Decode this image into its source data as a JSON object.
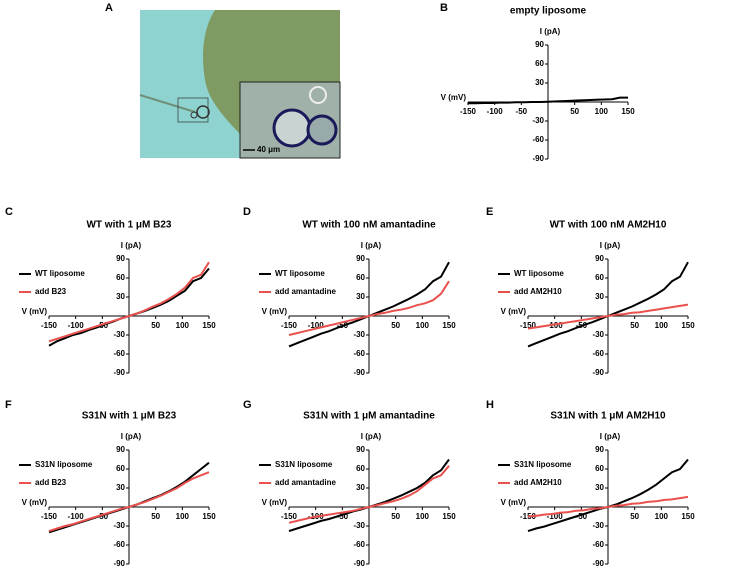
{
  "image": {
    "panel": "A",
    "scale_bar": "40 μm"
  },
  "chart_data": [
    {
      "type": "line",
      "panel": "B",
      "title": "empty liposome",
      "x_label": "V (mV)",
      "y_label": "I (pA)",
      "xlim": [
        -150,
        150
      ],
      "xticks": [
        -150,
        -100,
        -50,
        50,
        100,
        150
      ],
      "ylim": [
        -90,
        90
      ],
      "yticks": [
        -90,
        -60,
        -30,
        30,
        60,
        90
      ],
      "x": [
        -150,
        -135,
        -120,
        -105,
        -90,
        -75,
        -60,
        -45,
        -30,
        -15,
        0,
        15,
        30,
        45,
        60,
        75,
        90,
        105,
        120,
        135,
        150
      ],
      "series": [
        {
          "color": "#000000",
          "values": [
            -2,
            -2,
            -1.5,
            -1.5,
            -1,
            -1,
            -0.5,
            -0.5,
            0,
            0,
            0.5,
            1,
            1.5,
            2,
            2.5,
            3,
            3.5,
            4,
            4.5,
            7,
            7
          ]
        }
      ]
    },
    {
      "type": "line",
      "panel": "C",
      "title": "WT with 1 μM B23",
      "x_label": "V (mV)",
      "y_label": "I (pA)",
      "legend": "upper left",
      "xlim": [
        -150,
        150
      ],
      "xticks": [
        -150,
        -100,
        -50,
        50,
        100,
        150
      ],
      "ylim": [
        -90,
        90
      ],
      "yticks": [
        -90,
        -60,
        -30,
        30,
        60,
        90
      ],
      "x": [
        -150,
        -135,
        -120,
        -105,
        -90,
        -75,
        -60,
        -45,
        -30,
        -15,
        0,
        15,
        30,
        45,
        60,
        75,
        90,
        105,
        120,
        135,
        150
      ],
      "series": [
        {
          "name": "WT liposome",
          "color": "#000000",
          "values": [
            -47,
            -40,
            -35,
            -30,
            -27,
            -22,
            -18,
            -13,
            -9,
            -4,
            0,
            4,
            8,
            13,
            18,
            24,
            32,
            40,
            55,
            60,
            75
          ]
        },
        {
          "name": "add B23",
          "color": "#e8514d",
          "values": [
            -40,
            -36,
            -32,
            -28,
            -24,
            -20,
            -16,
            -12,
            -8,
            -4,
            0,
            4,
            9,
            15,
            20,
            27,
            35,
            45,
            60,
            65,
            85
          ]
        }
      ]
    },
    {
      "type": "line",
      "panel": "D",
      "title": "WT with 100 nM amantadine",
      "x_label": "V (mV)",
      "y_label": "I (pA)",
      "legend": "upper left",
      "xlim": [
        -150,
        150
      ],
      "xticks": [
        -150,
        -100,
        -50,
        50,
        100,
        150
      ],
      "ylim": [
        -90,
        90
      ],
      "yticks": [
        -90,
        -60,
        -30,
        30,
        60,
        90
      ],
      "x": [
        -150,
        -135,
        -120,
        -105,
        -90,
        -75,
        -60,
        -45,
        -30,
        -15,
        0,
        15,
        30,
        45,
        60,
        75,
        90,
        105,
        120,
        135,
        150
      ],
      "series": [
        {
          "name": "WT liposome",
          "color": "#000000",
          "values": [
            -48,
            -43,
            -38,
            -33,
            -28,
            -24,
            -19,
            -14,
            -10,
            -5,
            0,
            5,
            10,
            15,
            21,
            27,
            34,
            42,
            55,
            62,
            85
          ]
        },
        {
          "name": "add amantadine",
          "color": "#e8514d",
          "values": [
            -30,
            -27,
            -24,
            -21,
            -18,
            -15,
            -12,
            -9,
            -6,
            -3,
            0,
            3,
            5,
            8,
            10,
            13,
            17,
            20,
            25,
            35,
            55
          ]
        }
      ]
    },
    {
      "type": "line",
      "panel": "E",
      "title": "WT with 100 nM AM2H10",
      "x_label": "V (mV)",
      "y_label": "I (pA)",
      "legend": "upper left",
      "xlim": [
        -150,
        150
      ],
      "xticks": [
        -150,
        -100,
        -50,
        50,
        100,
        150
      ],
      "ylim": [
        -90,
        90
      ],
      "yticks": [
        -90,
        -60,
        -30,
        30,
        60,
        90
      ],
      "x": [
        -150,
        -135,
        -120,
        -105,
        -90,
        -75,
        -60,
        -45,
        -30,
        -15,
        0,
        15,
        30,
        45,
        60,
        75,
        90,
        105,
        120,
        135,
        150
      ],
      "series": [
        {
          "name": "WT liposome",
          "color": "#000000",
          "values": [
            -48,
            -43,
            -38,
            -33,
            -28,
            -24,
            -19,
            -14,
            -10,
            -5,
            0,
            5,
            10,
            15,
            21,
            27,
            34,
            42,
            55,
            62,
            85
          ]
        },
        {
          "name": "add AM2H10",
          "color": "#e8514d",
          "values": [
            -20,
            -18,
            -16,
            -14,
            -12,
            -10,
            -8,
            -6,
            -4,
            -2,
            0,
            2,
            3,
            5,
            6,
            8,
            10,
            12,
            14,
            16,
            18
          ]
        }
      ]
    },
    {
      "type": "line",
      "panel": "F",
      "title": "S31N with 1 μM B23",
      "x_label": "V (mV)",
      "y_label": "I (pA)",
      "legend": "upper left",
      "xlim": [
        -150,
        150
      ],
      "xticks": [
        -150,
        -100,
        -50,
        50,
        100,
        150
      ],
      "ylim": [
        -90,
        90
      ],
      "yticks": [
        -90,
        -60,
        -30,
        30,
        60,
        90
      ],
      "x": [
        -150,
        -135,
        -120,
        -105,
        -90,
        -75,
        -60,
        -45,
        -30,
        -15,
        0,
        15,
        30,
        45,
        60,
        75,
        90,
        105,
        120,
        135,
        150
      ],
      "series": [
        {
          "name": "S31N liposome",
          "color": "#000000",
          "values": [
            -40,
            -36,
            -32,
            -28,
            -24,
            -20,
            -16,
            -12,
            -8,
            -4,
            0,
            4,
            9,
            14,
            19,
            25,
            32,
            40,
            50,
            60,
            70
          ]
        },
        {
          "name": "add B23",
          "color": "#e8514d",
          "values": [
            -38,
            -34,
            -30,
            -27,
            -23,
            -19,
            -15,
            -11,
            -7,
            -3,
            0,
            4,
            8,
            13,
            18,
            24,
            30,
            38,
            45,
            50,
            55
          ]
        }
      ]
    },
    {
      "type": "line",
      "panel": "G",
      "title": "S31N with 1 μM amantadine",
      "x_label": "V (mV)",
      "y_label": "I (pA)",
      "legend": "upper left",
      "xlim": [
        -150,
        150
      ],
      "xticks": [
        -150,
        -100,
        -50,
        50,
        100,
        150
      ],
      "ylim": [
        -90,
        90
      ],
      "yticks": [
        -90,
        -60,
        -30,
        30,
        60,
        90
      ],
      "x": [
        -150,
        -135,
        -120,
        -105,
        -90,
        -75,
        -60,
        -45,
        -30,
        -15,
        0,
        15,
        30,
        45,
        60,
        75,
        90,
        105,
        120,
        135,
        150
      ],
      "series": [
        {
          "name": "S31N liposome",
          "color": "#000000",
          "values": [
            -38,
            -34,
            -30,
            -26,
            -22,
            -19,
            -15,
            -11,
            -7,
            -4,
            0,
            4,
            8,
            13,
            18,
            24,
            30,
            38,
            50,
            58,
            75
          ]
        },
        {
          "name": "add amantadine",
          "color": "#e8514d",
          "values": [
            -25,
            -22,
            -19,
            -16,
            -14,
            -12,
            -10,
            -8,
            -6,
            -3,
            0,
            3,
            6,
            9,
            13,
            18,
            25,
            35,
            45,
            50,
            65
          ]
        }
      ]
    },
    {
      "type": "line",
      "panel": "H",
      "title": "S31N with 1 μM AM2H10",
      "x_label": "V (mV)",
      "y_label": "I (pA)",
      "legend": "upper left",
      "xlim": [
        -150,
        150
      ],
      "xticks": [
        -150,
        -100,
        -50,
        50,
        100,
        150
      ],
      "ylim": [
        -90,
        90
      ],
      "yticks": [
        -90,
        -60,
        -30,
        30,
        60,
        90
      ],
      "x": [
        -150,
        -135,
        -120,
        -105,
        -90,
        -75,
        -60,
        -45,
        -30,
        -15,
        0,
        15,
        30,
        45,
        60,
        75,
        90,
        105,
        120,
        135,
        150
      ],
      "series": [
        {
          "name": "S31N liposome",
          "color": "#000000",
          "values": [
            -38,
            -34,
            -31,
            -27,
            -23,
            -19,
            -15,
            -11,
            -7,
            -3,
            0,
            4,
            9,
            14,
            20,
            27,
            35,
            45,
            55,
            60,
            75
          ]
        },
        {
          "name": "add AM2H10",
          "color": "#e8514d",
          "values": [
            -15,
            -14,
            -12,
            -11,
            -9,
            -8,
            -6,
            -5,
            -3,
            -2,
            0,
            2,
            3,
            5,
            6,
            8,
            9,
            11,
            12,
            14,
            16
          ]
        }
      ]
    }
  ]
}
